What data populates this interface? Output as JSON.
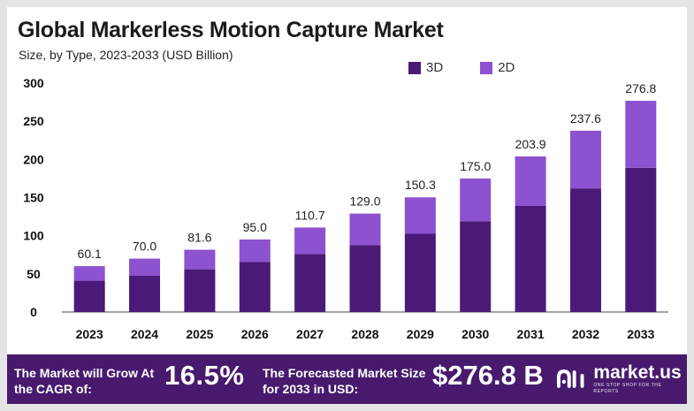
{
  "title": "Global Markerless Motion Capture Market",
  "subtitle": "Size, by Type, 2023-2033 (USD Billion)",
  "colors": {
    "3D": "#4b1977",
    "2D": "#8d52cf",
    "banner": "#471a6e"
  },
  "chart_data": {
    "type": "bar",
    "stacked": true,
    "categories": [
      "2023",
      "2024",
      "2025",
      "2026",
      "2027",
      "2028",
      "2029",
      "2030",
      "2031",
      "2032",
      "2033"
    ],
    "series": [
      {
        "name": "3D",
        "values": [
          41.0,
          47.5,
          56.0,
          65.5,
          76.0,
          87.5,
          102.5,
          119.0,
          139.0,
          162.0,
          189.0
        ]
      },
      {
        "name": "2D",
        "values": [
          19.1,
          22.5,
          25.6,
          29.5,
          34.7,
          41.5,
          47.8,
          56.0,
          64.9,
          75.6,
          87.8
        ]
      }
    ],
    "totals": [
      "60.1",
      "70.0",
      "81.6",
      "95.0",
      "110.7",
      "129.0",
      "150.3",
      "175.0",
      "203.9",
      "237.6",
      "276.8"
    ],
    "yticks": [
      "0",
      "50",
      "100",
      "150",
      "200",
      "250",
      "300"
    ],
    "ylim": [
      0,
      300
    ],
    "grid": false,
    "legend_position": "top-right"
  },
  "banner": {
    "grow_text": "The Market will Grow At the CAGR of:",
    "cagr": "16.5%",
    "forecast_text": "The Forecasted Market Size for 2033 in USD:",
    "forecast_value": "$276.8 B",
    "logo_name": "market.us",
    "logo_tagline": "ONE STOP SHOP FOR THE REPORTS",
    "logo_icon": "market-us-logo-icon"
  }
}
